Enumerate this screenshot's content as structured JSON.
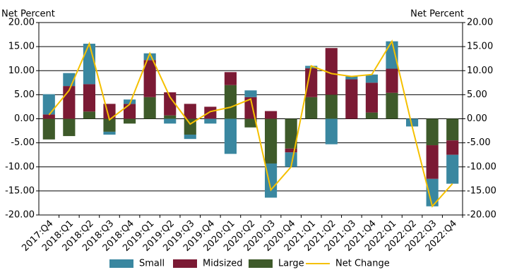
{
  "chart_data": {
    "type": "bar",
    "y_label": "Net Percent",
    "y2_label": "Net Percent",
    "categories": [
      "2017:Q4",
      "2018:Q1",
      "2018:Q2",
      "2018:Q3",
      "2018:Q4",
      "2019:Q1",
      "2019:Q2",
      "2019:Q3",
      "2019:Q4",
      "2020:Q1",
      "2020:Q2",
      "2020:Q3",
      "2020:Q4",
      "2021:Q1",
      "2021:Q2",
      "2021:Q3",
      "2021:Q4",
      "2022:Q1",
      "2022:Q2",
      "2022:Q3",
      "2022:Q4"
    ],
    "series": [
      {
        "name": "Small",
        "color": "#3a87a0",
        "values": [
          4.2,
          2.7,
          8.4,
          -0.6,
          0.9,
          1.4,
          -1.0,
          -0.9,
          -1.0,
          -7.3,
          1.4,
          -7.1,
          -3.0,
          0.5,
          -5.3,
          0.6,
          1.7,
          5.7,
          -1.6,
          -5.7,
          -6.0
        ]
      },
      {
        "name": "Midsized",
        "color": "#7b1a34",
        "values": [
          0.9,
          6.8,
          5.7,
          3.1,
          3.1,
          7.7,
          4.8,
          3.1,
          2.5,
          2.7,
          4.5,
          1.6,
          -0.8,
          6.0,
          9.7,
          8.2,
          6.2,
          5.0,
          0,
          -7.0,
          -3.0
        ]
      },
      {
        "name": "Large",
        "color": "#3e5a2a",
        "values": [
          -4.3,
          -3.6,
          1.5,
          -2.7,
          -1.0,
          4.5,
          0.7,
          -3.3,
          0,
          7.0,
          -1.8,
          -9.3,
          -6.2,
          4.5,
          5.0,
          0,
          1.3,
          5.4,
          0,
          -5.5,
          -4.5
        ]
      },
      {
        "name": "Net Change",
        "type": "line",
        "color": "#f5c000",
        "values": [
          0.8,
          5.9,
          15.6,
          -0.2,
          3.0,
          13.6,
          4.5,
          -1.1,
          1.5,
          2.4,
          4.1,
          -14.8,
          -10.0,
          11.0,
          9.4,
          8.8,
          9.2,
          16.1,
          -1.6,
          -18.2,
          -13.5
        ]
      }
    ],
    "ylim": [
      -20,
      20
    ],
    "yticks": [
      {
        "value": -20,
        "label": "-20.00"
      },
      {
        "value": -15,
        "label": "-15.00"
      },
      {
        "value": -10,
        "label": "-10.00"
      },
      {
        "value": -5,
        "label": "-5.00"
      },
      {
        "value": 0,
        "label": "0.00"
      },
      {
        "value": 5,
        "label": "5.00"
      },
      {
        "value": 10,
        "label": "10.00"
      },
      {
        "value": 15,
        "label": "15.00"
      },
      {
        "value": 20,
        "label": "20.00"
      }
    ],
    "y2lim": [
      -20,
      20
    ],
    "y2ticks": [
      {
        "value": -20,
        "label": "-20.00"
      },
      {
        "value": -15,
        "label": "-15.00"
      },
      {
        "value": -10,
        "label": "-10.00"
      },
      {
        "value": -5,
        "label": "-5.00"
      },
      {
        "value": 0,
        "label": "0.00"
      },
      {
        "value": 5,
        "label": "5.00"
      },
      {
        "value": 10,
        "label": "10.00"
      },
      {
        "value": 15,
        "label": "15.00"
      },
      {
        "value": 20,
        "label": "20.00"
      }
    ],
    "grid": true,
    "legend": "bottom"
  }
}
